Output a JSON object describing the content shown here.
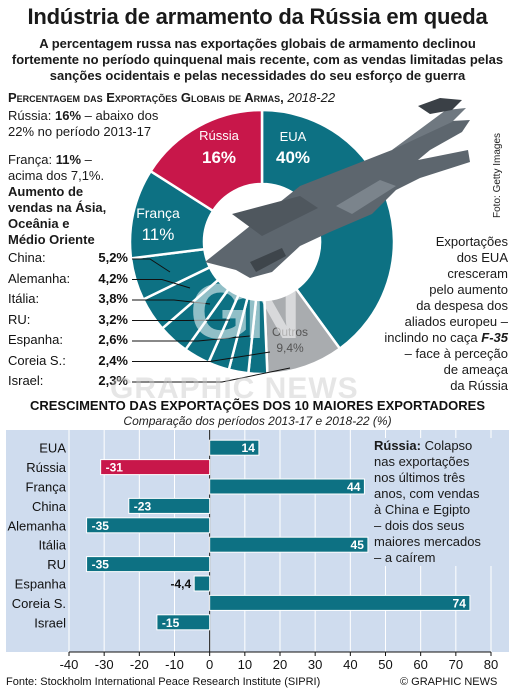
{
  "title": "Indústria de armamento da Rússia em queda",
  "subtitle": "A percentagem russa nas exportações globais de armamento declinou fortemente no período quinquenal mais recente, com as vendas limitadas pelas sanções ocidentais e pelas necessidades do seu esforço de guerra",
  "section1": {
    "title": "Percentagem das Exportações Globais de Armas,",
    "years": "2018-22"
  },
  "notes": {
    "russia_line1": "Rússia:",
    "russia_value": "16%",
    "russia_rest1": "– abaixo dos",
    "russia_line2": "22% no período 2013-17",
    "france_label": "França:",
    "france_value": "11%",
    "france_rest": "–",
    "france_line2": "acima dos 7,1%.",
    "asia_1": "Aumento de",
    "asia_2": "vendas na Ásia,",
    "asia_3": "Oceânia e",
    "asia_4": "Médio Oriente",
    "usa_1": "Exportações",
    "usa_2": "dos EUA",
    "usa_3": "cresceram",
    "usa_4": "pelo aumento",
    "usa_5": "da despesa dos",
    "usa_6": "aliados europeu –",
    "usa_7a": "inclindo no caça",
    "usa_7b": "F-35",
    "usa_8": "– face à perceção",
    "usa_9": "de ameaça",
    "usa_10": "da Rússia"
  },
  "photo_credit": "Foto: Getty Images",
  "watermark_gn": "GN",
  "watermark_text": "GRAPHIC NEWS",
  "pie_labels": {
    "russia": "Rússia",
    "russia_pct": "16%",
    "usa": "EUA",
    "usa_pct": "40%",
    "france": "França",
    "france_pct": "11%",
    "others": "Outros",
    "others_pct": "9,4%"
  },
  "section2": {
    "title": "CRESCIMENTO DAS EXPORTAÇÕES DOS 10 MAIORES EXPORTADORES",
    "subtitle": "Comparação dos períodos 2013-17 e 2018-22 (%)"
  },
  "bar_note": {
    "lead": "Rússia:",
    "l1": "Colapso",
    "l2": "nas exportações",
    "l3": "nos últimos três",
    "l4": "anos, com vendas",
    "l5": "à China e Egipto",
    "l6": "– dois dos seus",
    "l7": "maiores mercados",
    "l8": "– a caírem"
  },
  "source": "Fonte: Stockholm International Peace Research Institute (SIPRI)",
  "brand": "© GRAPHIC NEWS",
  "colors": {
    "teal": "#0d7183",
    "crimson": "#c8174a",
    "grey": "#a9acaf",
    "bg_blue": "#cfdcee",
    "ring": "#ffffff"
  },
  "chart_data": [
    {
      "type": "pie",
      "title": "Percentagem das Exportações Globais de Armas, 2018-22",
      "slices": [
        {
          "name": "EUA",
          "value": 40
        },
        {
          "name": "Outros",
          "value": 9.4
        },
        {
          "name": "Israel",
          "value": 2.3
        },
        {
          "name": "Coreia S.",
          "value": 2.4
        },
        {
          "name": "Espanha",
          "value": 2.6
        },
        {
          "name": "RU",
          "value": 3.2
        },
        {
          "name": "Itália",
          "value": 3.8
        },
        {
          "name": "Alemanha",
          "value": 4.2
        },
        {
          "name": "China",
          "value": 5.2
        },
        {
          "name": "França",
          "value": 11
        },
        {
          "name": "Rússia",
          "value": 16
        }
      ],
      "small_list": [
        {
          "name": "China:",
          "label": "5,2%"
        },
        {
          "name": "Alemanha:",
          "label": "4,2%"
        },
        {
          "name": "Itália:",
          "label": "3,8%"
        },
        {
          "name": "RU:",
          "label": "3,2%"
        },
        {
          "name": "Espanha:",
          "label": "2,6%"
        },
        {
          "name": "Coreia S.:",
          "label": "2,4%"
        },
        {
          "name": "Israel:",
          "label": "2,3%"
        }
      ]
    },
    {
      "type": "bar",
      "orientation": "horizontal",
      "title": "CRESCIMENTO DAS EXPORTAÇÕES DOS 10 MAIORES EXPORTADORES",
      "subtitle": "Comparação dos períodos 2013-17 e 2018-22 (%)",
      "categories": [
        "EUA",
        "Rússia",
        "França",
        "China",
        "Alemanha",
        "Itália",
        "RU",
        "Espanha",
        "Coreia S.",
        "Israel"
      ],
      "values": [
        14,
        -31,
        44,
        -23,
        -35,
        45,
        -35,
        -4.4,
        74,
        -15
      ],
      "value_labels": [
        "14",
        "-31",
        "44",
        "-23",
        "-35",
        "45",
        "-35",
        "-4,4",
        "74",
        "-15"
      ],
      "highlight": "Rússia",
      "xlim": [
        -40,
        80
      ],
      "xticks": [
        -40,
        -30,
        -20,
        -10,
        0,
        10,
        20,
        30,
        40,
        50,
        60,
        70,
        80
      ],
      "grid": true
    }
  ]
}
